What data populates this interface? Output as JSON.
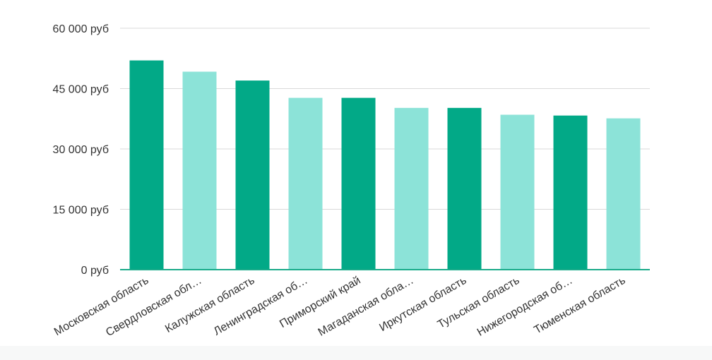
{
  "chart_data": {
    "type": "bar",
    "categories": [
      "Московская область",
      "Свердловская обл…",
      "Калужская область",
      "Ленинградская об…",
      "Приморский край",
      "Магаданская обла…",
      "Иркутская область",
      "Тульская область",
      "Нижегородская об…",
      "Тюменская область"
    ],
    "values": [
      52000,
      49200,
      47000,
      42700,
      42700,
      40200,
      40200,
      38500,
      38300,
      37600
    ],
    "bar_colors": [
      "#02a987",
      "#8ce3d8",
      "#02a987",
      "#8ce3d8",
      "#02a987",
      "#8ce3d8",
      "#02a987",
      "#8ce3d8",
      "#02a987",
      "#8ce3d8"
    ],
    "y_ticks": [
      {
        "value": 0,
        "label": "0 руб"
      },
      {
        "value": 15000,
        "label": "15 000 руб"
      },
      {
        "value": 30000,
        "label": "30 000 руб"
      },
      {
        "value": 45000,
        "label": "45 000 руб"
      },
      {
        "value": 60000,
        "label": "60 000 руб"
      }
    ],
    "ylim": [
      0,
      60000
    ],
    "grid": true,
    "legend": "none",
    "colors": {
      "dark": "#02a987",
      "light": "#8ce3d8",
      "baseline": "#1aab8a",
      "grid": "#d9d9d9",
      "text": "#333333"
    }
  }
}
